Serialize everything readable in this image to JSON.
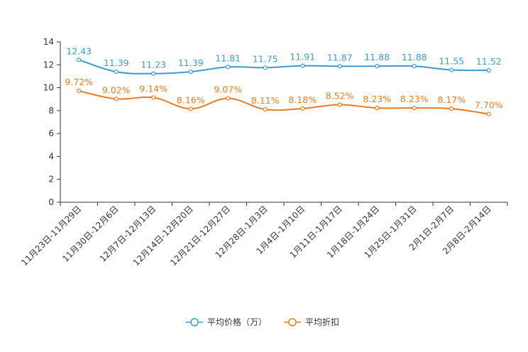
{
  "chart_data": {
    "type": "line",
    "categories": [
      "11月23日-11月29日",
      "11月30日-12月6日",
      "12月7日-12月13日",
      "12月14日-12月20日",
      "12月21日-12月27日",
      "12月28日-1月3日",
      "1月4日-1月10日",
      "1月11日-1月17日",
      "1月18日-1月24日",
      "1月25日-1月31日",
      "2月1日-2月7日",
      "2月8日-2月14日"
    ],
    "series": [
      {
        "name": "平均价格（万）",
        "color": "#3b9bd0",
        "values": [
          12.43,
          11.39,
          11.23,
          11.39,
          11.81,
          11.75,
          11.91,
          11.87,
          11.88,
          11.88,
          11.55,
          11.52
        ],
        "labels": [
          "12.43",
          "11.39",
          "11.23",
          "11.39",
          "11.81",
          "11.75",
          "11.91",
          "11.87",
          "11.88",
          "11.88",
          "11.55",
          "11.52"
        ]
      },
      {
        "name": "平均折扣",
        "color": "#f07a17",
        "values": [
          9.72,
          9.02,
          9.14,
          8.16,
          9.07,
          8.11,
          8.18,
          8.52,
          8.23,
          8.23,
          8.17,
          7.7
        ],
        "labels": [
          "9.72%",
          "9.02%",
          "9.14%",
          "8.16%",
          "9.07%",
          "8.11%",
          "8.18%",
          "8.52%",
          "8.23%",
          "8.23%",
          "8.17%",
          "7.70%"
        ]
      }
    ],
    "yticks": [
      "0",
      "2",
      "4",
      "6",
      "8",
      "10",
      "12",
      "14"
    ],
    "ylim": [
      0,
      14
    ],
    "title": "",
    "xlabel": "",
    "ylabel": "",
    "grid": false,
    "legend_position": "bottom-center"
  }
}
